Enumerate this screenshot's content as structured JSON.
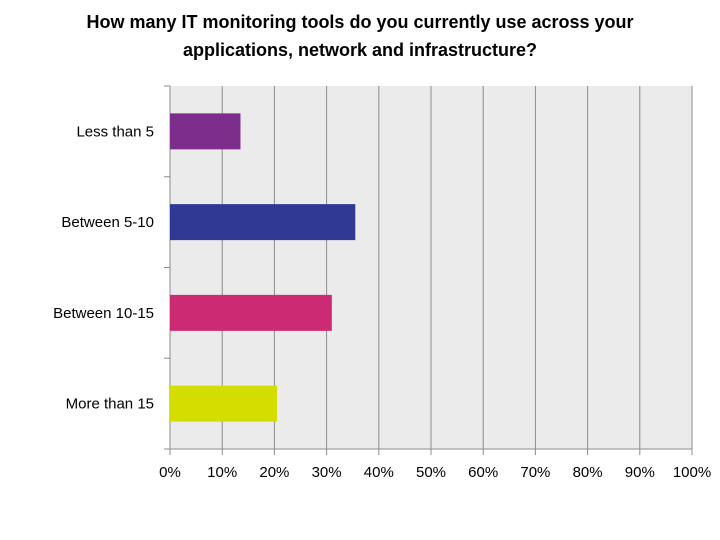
{
  "chart_data": {
    "type": "bar",
    "orientation": "horizontal",
    "title_lines": [
      "How many IT monitoring tools do you currently use across your",
      "applications, network and infrastructure?"
    ],
    "categories": [
      "Less than 5",
      "Between 5-10",
      "Between 10-15",
      "More than 15"
    ],
    "values": [
      13.5,
      35.5,
      31,
      20.5
    ],
    "colors": [
      "#7d2e8c",
      "#303a94",
      "#cc2a73",
      "#d4dd00"
    ],
    "xlim": [
      0,
      100
    ],
    "xticks": [
      "0%",
      "10%",
      "20%",
      "30%",
      "40%",
      "50%",
      "60%",
      "70%",
      "80%",
      "90%",
      "100%"
    ],
    "grid": "vertical",
    "plot_background": "#ebebeb",
    "legend": "none"
  }
}
